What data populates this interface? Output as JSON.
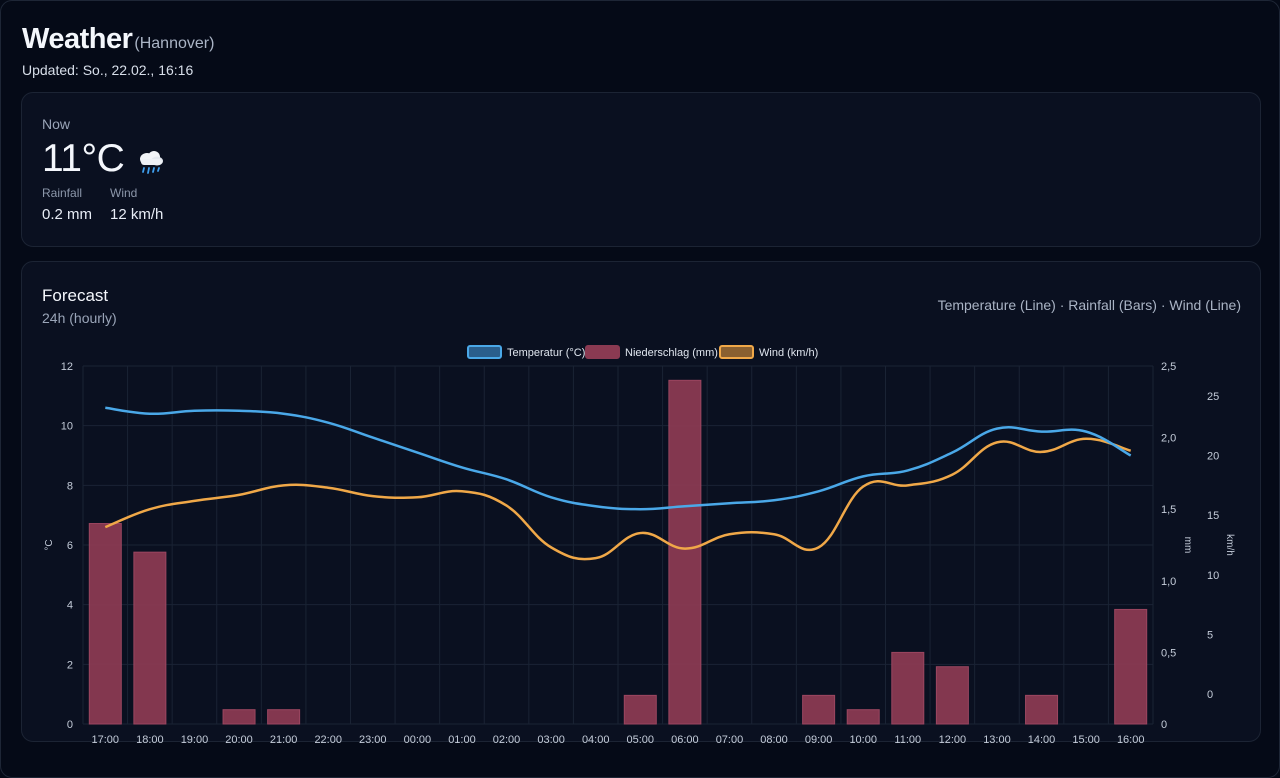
{
  "header": {
    "title": "Weather",
    "location": "(Hannover)",
    "updated": "Updated: So., 22.02., 16:16"
  },
  "now": {
    "label": "Now",
    "temperature": "11°C",
    "icon": "rain-cloud-icon",
    "rainfall_label": "Rainfall",
    "rainfall_value": "0.2 mm",
    "wind_label": "Wind",
    "wind_value": "12 km/h"
  },
  "forecast": {
    "title": "Forecast",
    "subtitle": "24h (hourly)",
    "legend_text": "Temperature (Line) · Rainfall (Bars) · Wind (Line)"
  },
  "colors": {
    "temperature": "#4aa8e8",
    "rainfall": "#8a3a52",
    "wind": "#f0a848",
    "grid": "#1a2334"
  },
  "chart_data": {
    "type": "bar+line",
    "categories": [
      "17:00",
      "18:00",
      "19:00",
      "20:00",
      "21:00",
      "22:00",
      "23:00",
      "00:00",
      "01:00",
      "02:00",
      "03:00",
      "04:00",
      "05:00",
      "06:00",
      "07:00",
      "08:00",
      "09:00",
      "10:00",
      "11:00",
      "12:00",
      "13:00",
      "14:00",
      "15:00",
      "16:00"
    ],
    "series": [
      {
        "name": "Temperatur (°C)",
        "type": "line",
        "axis": "°C",
        "values": [
          10.6,
          10.4,
          10.5,
          10.5,
          10.4,
          10.1,
          9.6,
          9.1,
          8.6,
          8.2,
          7.6,
          7.3,
          7.2,
          7.3,
          7.4,
          7.5,
          7.8,
          8.3,
          8.5,
          9.1,
          9.9,
          9.8,
          9.8,
          9.0
        ]
      },
      {
        "name": "Niederschlag (mm)",
        "type": "bar",
        "axis": "mm",
        "values": [
          1.4,
          1.2,
          0,
          0.1,
          0.1,
          0,
          0,
          0,
          0,
          0,
          0,
          0,
          0.2,
          2.4,
          0,
          0,
          0.2,
          0.1,
          0.5,
          0.4,
          0,
          0.2,
          0,
          0.8
        ]
      },
      {
        "name": "Wind (km/h)",
        "type": "line",
        "axis": "km/h",
        "values": [
          14,
          15.5,
          16.2,
          16.7,
          17.5,
          17.3,
          16.6,
          16.5,
          17.0,
          15.8,
          12.3,
          11.4,
          13.5,
          12.2,
          13.4,
          13.4,
          12.3,
          17.4,
          17.5,
          18.4,
          21.1,
          20.3,
          21.4,
          20.4
        ]
      }
    ],
    "axes": {
      "left": {
        "label": "°C",
        "min": 0,
        "max": 12,
        "ticks": [
          "0",
          "2",
          "4",
          "6",
          "8",
          "10",
          "12"
        ]
      },
      "right_mm": {
        "label": "mm",
        "min": 0,
        "max": 2.5,
        "ticks": [
          "0",
          "0,5",
          "1,0",
          "1,5",
          "2,0",
          "2,5"
        ]
      },
      "right_kmh": {
        "label": "km/h",
        "min": -2.5,
        "max": 27.5,
        "ticks": [
          "0",
          "5",
          "10",
          "15",
          "20",
          "25"
        ]
      }
    },
    "legend_position": "top-center",
    "grid": true
  }
}
